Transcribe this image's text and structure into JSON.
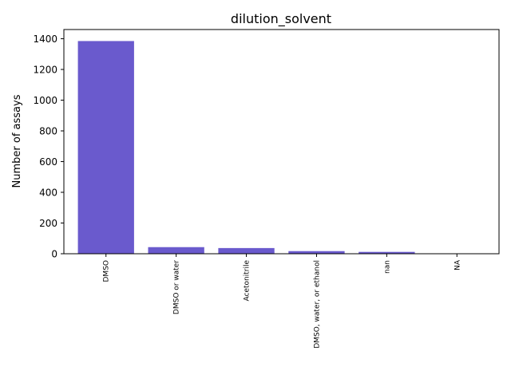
{
  "chart_data": {
    "type": "bar",
    "title": "dilution_solvent",
    "xlabel": "",
    "ylabel": "Number of assays",
    "categories": [
      "DMSO",
      "DMSO or water",
      "Acetonitrile",
      "DMSO, water, or ethanol",
      "nan",
      "NA"
    ],
    "values": [
      1385,
      43,
      37,
      17,
      12,
      1
    ],
    "ylim": [
      0,
      1460
    ],
    "yticks": [
      0,
      200,
      400,
      600,
      800,
      1000,
      1200,
      1400
    ],
    "grid": false,
    "bar_color": "#6a5acd"
  }
}
